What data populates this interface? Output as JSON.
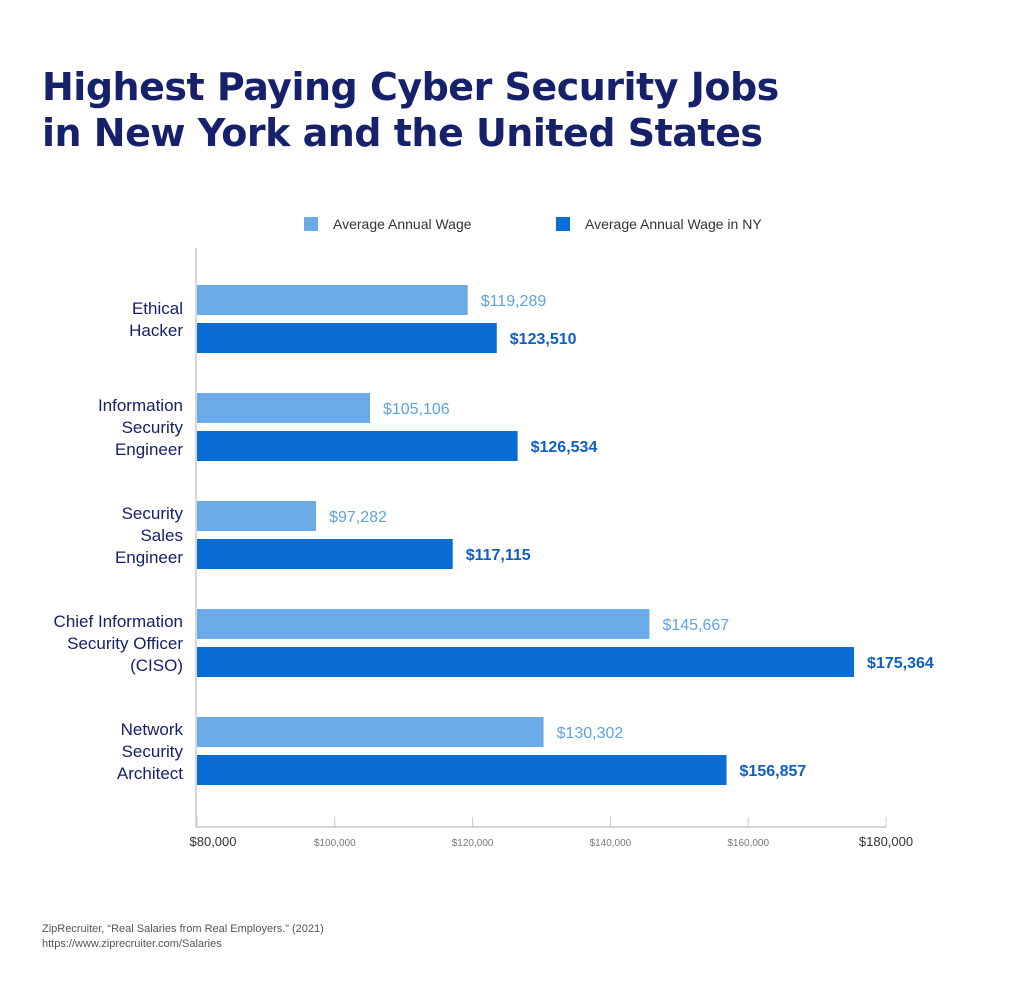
{
  "chart_data": {
    "type": "bar",
    "orientation": "horizontal",
    "title_lines": [
      "Highest Paying Cyber Security Jobs",
      "in New York and the United States"
    ],
    "categories": [
      [
        "Ethical",
        "Hacker"
      ],
      [
        "Information",
        "Security",
        "Engineer"
      ],
      [
        "Security",
        "Sales",
        "Engineer"
      ],
      [
        "Chief Information",
        "Security Officer",
        "(CISO)"
      ],
      [
        "Network",
        "Security",
        "Architect"
      ]
    ],
    "series": [
      {
        "name": "Average Annual Wage",
        "color": "#6aaae6",
        "label_color": "#5ea3e2",
        "values": [
          119289,
          105106,
          97282,
          145667,
          130302
        ],
        "labels": [
          "$119,289",
          "$105,106",
          "$97,282",
          "$145,667",
          "$130,302"
        ]
      },
      {
        "name": "Average Annual Wage in NY",
        "color": "#0a6dd4",
        "label_color": "#0d5fc4",
        "values": [
          123510,
          126534,
          117115,
          175364,
          156857
        ],
        "labels": [
          "$123,510",
          "$126,534",
          "$117,115",
          "$175,364",
          "$156,857"
        ]
      }
    ],
    "xlim": [
      80000,
      180000
    ],
    "xticks": [
      80000,
      100000,
      120000,
      140000,
      160000,
      180000
    ],
    "xtick_labels": [
      "$80,000",
      "$100,000",
      "$120,000",
      "$140,000",
      "$160,000",
      "$180,000"
    ],
    "legend_position": "top-center",
    "grid": false
  },
  "source": {
    "line1": "ZipRecruiter, “Real Salaries from Real Employers.” (2021)",
    "line2": "https://www.ziprecruiter.com/Salaries"
  }
}
